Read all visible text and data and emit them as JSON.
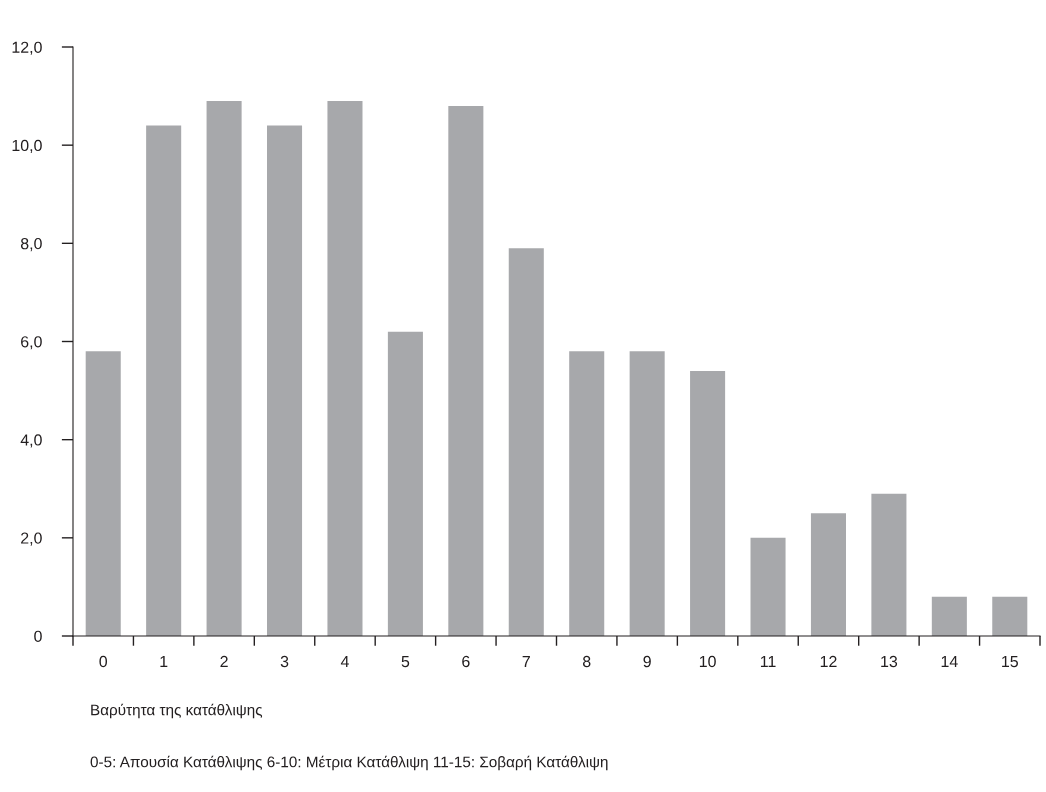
{
  "chart_data": {
    "type": "bar",
    "categories": [
      "0",
      "1",
      "2",
      "3",
      "4",
      "5",
      "6",
      "7",
      "8",
      "9",
      "10",
      "11",
      "12",
      "13",
      "14",
      "15"
    ],
    "values": [
      5.8,
      10.4,
      10.9,
      10.4,
      10.9,
      6.2,
      10.8,
      7.9,
      5.8,
      5.8,
      5.4,
      2.0,
      2.5,
      2.9,
      0.8,
      0.8
    ],
    "color": "#a7a8ab",
    "ylim": [
      0,
      12
    ],
    "yticks": [
      0,
      {
        "value": 2,
        "label": "2,0"
      },
      {
        "value": 4,
        "label": "4,0"
      },
      {
        "value": 6,
        "label": "6,0"
      },
      {
        "value": 8,
        "label": "8,0"
      },
      {
        "value": 10,
        "label": "10,0"
      },
      {
        "value": 12,
        "label": "12,0"
      }
    ],
    "xlabel": "Βαρύτητα της κατάθλιψης",
    "annotations": [
      "0-5: Απουσία Κατάθλιψης 6-10: Μέτρια Κατάθλιψη 11-15: Σοβαρή Κατάθλιψη"
    ],
    "grid": false,
    "legend": false
  }
}
